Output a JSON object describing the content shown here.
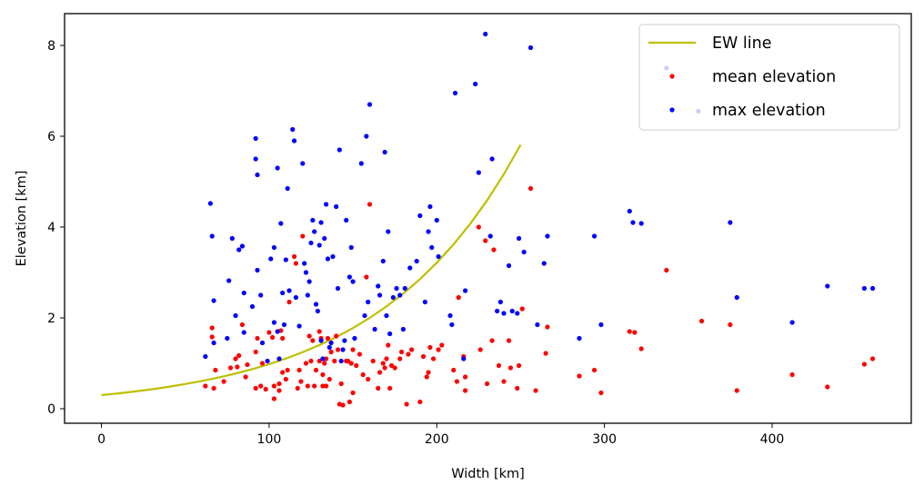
{
  "chart_data": {
    "type": "scatter",
    "xlabel": "Width [km]",
    "ylabel": "Elevation [km]",
    "xlim": [
      -22,
      483
    ],
    "ylim": [
      -0.32,
      8.7
    ],
    "xticks": [
      0,
      100,
      200,
      300,
      400
    ],
    "yticks": [
      0,
      2,
      4,
      6,
      8
    ],
    "grid": false,
    "legend_position": "upper right",
    "series": [
      {
        "name": "EW line",
        "kind": "line",
        "color": "#bfbf00",
        "x": [
          0,
          10,
          20,
          30,
          40,
          50,
          60,
          70,
          80,
          90,
          100,
          110,
          120,
          130,
          140,
          150,
          160,
          170,
          180,
          190,
          200,
          210,
          220,
          230,
          240,
          250
        ],
        "y": [
          0.3,
          0.338,
          0.38,
          0.428,
          0.482,
          0.543,
          0.611,
          0.688,
          0.775,
          0.872,
          0.982,
          1.105,
          1.245,
          1.401,
          1.578,
          1.776,
          2.0,
          2.252,
          2.535,
          2.854,
          3.214,
          3.618,
          4.074,
          4.586,
          5.164,
          5.81
        ]
      },
      {
        "name": "mean elevation",
        "kind": "points",
        "color": "#ff0000",
        "points": [
          [
            62,
            0.5
          ],
          [
            66,
            1.78
          ],
          [
            66,
            1.58
          ],
          [
            67,
            0.45
          ],
          [
            68,
            0.85
          ],
          [
            73,
            0.6
          ],
          [
            77,
            0.9
          ],
          [
            80,
            1.1
          ],
          [
            81,
            0.92
          ],
          [
            82,
            1.17
          ],
          [
            84,
            1.85
          ],
          [
            86,
            0.7
          ],
          [
            87,
            0.97
          ],
          [
            92,
            1.25
          ],
          [
            92,
            0.45
          ],
          [
            93,
            1.55
          ],
          [
            95,
            0.5
          ],
          [
            96,
            1.0
          ],
          [
            98,
            0.43
          ],
          [
            100,
            1.68
          ],
          [
            102,
            1.57
          ],
          [
            103,
            0.5
          ],
          [
            103,
            0.22
          ],
          [
            106,
            0.55
          ],
          [
            106,
            0.4
          ],
          [
            107,
            1.72
          ],
          [
            108,
            0.8
          ],
          [
            108,
            1.55
          ],
          [
            110,
            0.65
          ],
          [
            111,
            0.85
          ],
          [
            112,
            2.35
          ],
          [
            115,
            3.35
          ],
          [
            116,
            3.2
          ],
          [
            117,
            0.45
          ],
          [
            118,
            0.85
          ],
          [
            119,
            0.6
          ],
          [
            120,
            3.8
          ],
          [
            122,
            1.0
          ],
          [
            123,
            0.5
          ],
          [
            124,
            1.6
          ],
          [
            125,
            1.05
          ],
          [
            126,
            1.5
          ],
          [
            127,
            0.5
          ],
          [
            128,
            0.85
          ],
          [
            130,
            1.05
          ],
          [
            130,
            1.7
          ],
          [
            131,
            1.55
          ],
          [
            132,
            0.5
          ],
          [
            132,
            0.75
          ],
          [
            133,
            1.0
          ],
          [
            134,
            1.1
          ],
          [
            134,
            0.5
          ],
          [
            135,
            1.55
          ],
          [
            136,
            0.65
          ],
          [
            137,
            1.25
          ],
          [
            139,
            1.05
          ],
          [
            140,
            1.6
          ],
          [
            141,
            1.3
          ],
          [
            142,
            0.1
          ],
          [
            143,
            0.55
          ],
          [
            144,
            0.08
          ],
          [
            146,
            1.05
          ],
          [
            147,
            1.05
          ],
          [
            148,
            0.15
          ],
          [
            149,
            1.0
          ],
          [
            150,
            1.3
          ],
          [
            150,
            0.35
          ],
          [
            152,
            0.95
          ],
          [
            154,
            1.2
          ],
          [
            156,
            0.75
          ],
          [
            158,
            2.9
          ],
          [
            159,
            0.65
          ],
          [
            160,
            4.5
          ],
          [
            162,
            1.05
          ],
          [
            165,
            0.45
          ],
          [
            166,
            0.8
          ],
          [
            168,
            1.0
          ],
          [
            169,
            0.9
          ],
          [
            170,
            1.1
          ],
          [
            171,
            1.4
          ],
          [
            172,
            0.45
          ],
          [
            173,
            0.95
          ],
          [
            175,
            0.9
          ],
          [
            178,
            1.1
          ],
          [
            179,
            1.25
          ],
          [
            182,
            0.1
          ],
          [
            183,
            1.2
          ],
          [
            185,
            1.3
          ],
          [
            190,
            0.15
          ],
          [
            192,
            1.15
          ],
          [
            194,
            0.7
          ],
          [
            195,
            0.8
          ],
          [
            196,
            1.35
          ],
          [
            198,
            1.1
          ],
          [
            201,
            1.3
          ],
          [
            203,
            1.4
          ],
          [
            210,
            0.85
          ],
          [
            212,
            0.6
          ],
          [
            213,
            2.45
          ],
          [
            216,
            1.15
          ],
          [
            217,
            0.7
          ],
          [
            217,
            0.4
          ],
          [
            225,
            4.0
          ],
          [
            226,
            1.3
          ],
          [
            229,
            3.7
          ],
          [
            230,
            0.55
          ],
          [
            233,
            1.5
          ],
          [
            234,
            3.5
          ],
          [
            237,
            0.95
          ],
          [
            240,
            0.6
          ],
          [
            243,
            1.5
          ],
          [
            244,
            0.9
          ],
          [
            248,
            0.45
          ],
          [
            249,
            0.95
          ],
          [
            251,
            2.2
          ],
          [
            256,
            4.85
          ],
          [
            259,
            0.4
          ],
          [
            265,
            1.22
          ],
          [
            266,
            1.8
          ],
          [
            285,
            0.72
          ],
          [
            294,
            0.85
          ],
          [
            298,
            0.35
          ],
          [
            315,
            1.7
          ],
          [
            318,
            1.68
          ],
          [
            322,
            1.32
          ],
          [
            337,
            3.05
          ],
          [
            358,
            1.93
          ],
          [
            375,
            1.85
          ],
          [
            379,
            0.4
          ],
          [
            412,
            0.75
          ],
          [
            433,
            0.48
          ],
          [
            455,
            0.98
          ],
          [
            460,
            1.1
          ]
        ]
      },
      {
        "name": "max elevation",
        "kind": "points",
        "color": "#0000ff",
        "points": [
          [
            62,
            1.15
          ],
          [
            65,
            4.52
          ],
          [
            66,
            3.8
          ],
          [
            67,
            1.45
          ],
          [
            67,
            2.38
          ],
          [
            75,
            1.55
          ],
          [
            76,
            2.82
          ],
          [
            78,
            3.75
          ],
          [
            80,
            2.05
          ],
          [
            82,
            3.5
          ],
          [
            84,
            3.58
          ],
          [
            85,
            2.55
          ],
          [
            85,
            1.68
          ],
          [
            90,
            2.25
          ],
          [
            92,
            5.95
          ],
          [
            92,
            5.5
          ],
          [
            93,
            5.15
          ],
          [
            93,
            3.05
          ],
          [
            95,
            2.5
          ],
          [
            96,
            1.45
          ],
          [
            99,
            1.05
          ],
          [
            101,
            3.3
          ],
          [
            103,
            1.9
          ],
          [
            103,
            3.55
          ],
          [
            105,
            1.7
          ],
          [
            105,
            5.3
          ],
          [
            106,
            1.1
          ],
          [
            107,
            4.08
          ],
          [
            108,
            2.55
          ],
          [
            109,
            1.85
          ],
          [
            110,
            3.28
          ],
          [
            111,
            4.85
          ],
          [
            112,
            2.6
          ],
          [
            114,
            6.15
          ],
          [
            115,
            5.9
          ],
          [
            116,
            2.45
          ],
          [
            118,
            1.82
          ],
          [
            120,
            5.4
          ],
          [
            121,
            3.2
          ],
          [
            122,
            3.0
          ],
          [
            123,
            2.5
          ],
          [
            124,
            2.8
          ],
          [
            125,
            3.65
          ],
          [
            126,
            4.15
          ],
          [
            127,
            3.9
          ],
          [
            128,
            2.3
          ],
          [
            129,
            2.15
          ],
          [
            130,
            3.6
          ],
          [
            131,
            4.1
          ],
          [
            131,
            1.5
          ],
          [
            132,
            1.1
          ],
          [
            133,
            3.75
          ],
          [
            134,
            4.5
          ],
          [
            135,
            3.3
          ],
          [
            136,
            1.35
          ],
          [
            137,
            1.45
          ],
          [
            138,
            3.35
          ],
          [
            140,
            4.45
          ],
          [
            141,
            2.65
          ],
          [
            142,
            5.7
          ],
          [
            143,
            1.05
          ],
          [
            144,
            1.3
          ],
          [
            145,
            1.5
          ],
          [
            146,
            4.15
          ],
          [
            148,
            2.9
          ],
          [
            149,
            3.55
          ],
          [
            150,
            2.8
          ],
          [
            151,
            1.55
          ],
          [
            155,
            5.4
          ],
          [
            157,
            2.05
          ],
          [
            158,
            6.0
          ],
          [
            159,
            2.35
          ],
          [
            160,
            6.7
          ],
          [
            163,
            1.75
          ],
          [
            165,
            2.7
          ],
          [
            166,
            2.5
          ],
          [
            168,
            3.25
          ],
          [
            169,
            5.65
          ],
          [
            170,
            2.05
          ],
          [
            171,
            3.9
          ],
          [
            172,
            1.65
          ],
          [
            174,
            2.45
          ],
          [
            176,
            2.65
          ],
          [
            178,
            2.5
          ],
          [
            180,
            1.75
          ],
          [
            181,
            2.65
          ],
          [
            184,
            3.1
          ],
          [
            188,
            3.25
          ],
          [
            190,
            4.25
          ],
          [
            193,
            2.35
          ],
          [
            195,
            3.9
          ],
          [
            196,
            4.45
          ],
          [
            197,
            3.55
          ],
          [
            200,
            4.15
          ],
          [
            201,
            3.35
          ],
          [
            208,
            2.05
          ],
          [
            209,
            1.85
          ],
          [
            211,
            6.95
          ],
          [
            216,
            1.1
          ],
          [
            217,
            2.6
          ],
          [
            223,
            7.15
          ],
          [
            225,
            5.2
          ],
          [
            229,
            8.25
          ],
          [
            232,
            3.8
          ],
          [
            233,
            5.5
          ],
          [
            236,
            2.15
          ],
          [
            238,
            2.35
          ],
          [
            240,
            2.1
          ],
          [
            243,
            3.15
          ],
          [
            245,
            2.15
          ],
          [
            248,
            2.1
          ],
          [
            249,
            3.75
          ],
          [
            252,
            3.45
          ],
          [
            256,
            7.95
          ],
          [
            260,
            1.85
          ],
          [
            264,
            3.2
          ],
          [
            266,
            3.8
          ],
          [
            285,
            1.55
          ],
          [
            294,
            3.8
          ],
          [
            298,
            1.85
          ],
          [
            315,
            4.35
          ],
          [
            317,
            4.1
          ],
          [
            322,
            4.08
          ],
          [
            337,
            7.5
          ],
          [
            356,
            6.55
          ],
          [
            375,
            4.1
          ],
          [
            379,
            2.45
          ],
          [
            412,
            1.9
          ],
          [
            433,
            2.7
          ],
          [
            455,
            2.65
          ],
          [
            460,
            2.65
          ]
        ]
      }
    ]
  }
}
